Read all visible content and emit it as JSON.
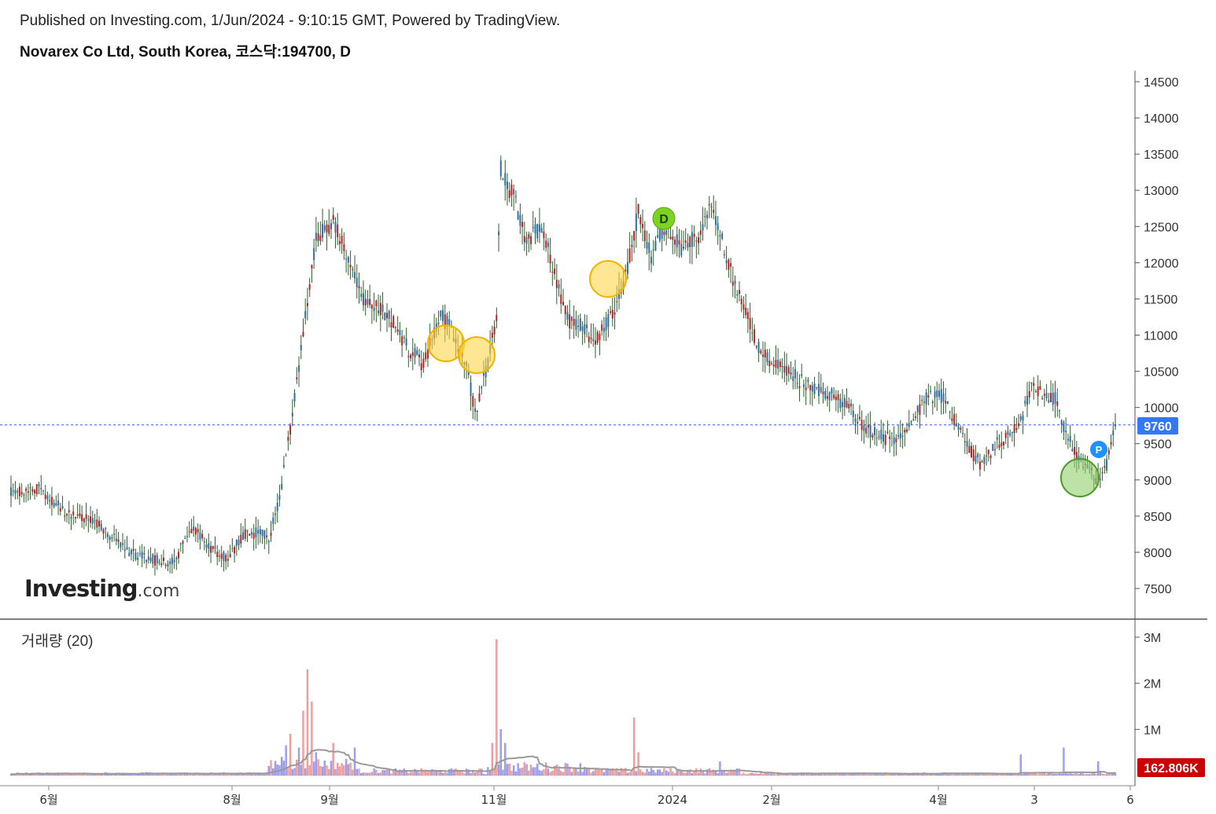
{
  "header": {
    "published": "Published on Investing.com, 1/Jun/2024 - 9:10:15 GMT, Powered by TradingView.",
    "symbol": "Novarex Co Ltd, South Korea, 코스닥:194700, D"
  },
  "logo": {
    "main": "Investing",
    "suffix": ".com"
  },
  "volume_panel": {
    "label": "거래량 (20)",
    "last_value_label": "162.806K"
  },
  "colors": {
    "up": "#b22222",
    "down": "#2e6da4",
    "wick": "#2e5e2e",
    "vol_up": "#f4a6a6",
    "vol_down": "#a8a8f0",
    "vol_ma": "#999999",
    "last_price_line": "#3355ff",
    "last_price_badge": "#3377ff",
    "vol_badge": "#cc0000"
  },
  "chart_data": [
    {
      "type": "candlestick",
      "title": "Novarex Co Ltd, South Korea, 코스닥:194700, D",
      "ylim": [
        7000,
        14800
      ],
      "y_ticks": [
        7500,
        8000,
        8500,
        9000,
        9500,
        10000,
        10500,
        11000,
        11500,
        12000,
        12500,
        13000,
        13500,
        14000,
        14500
      ],
      "x_ticks": [
        "6월",
        "8월",
        "9월",
        "11월",
        "2024",
        "2월",
        "4월",
        "3",
        "6"
      ],
      "last_price": 9760,
      "last_price_label": "9760",
      "markers": [
        {
          "label": "D",
          "type": "dividend"
        },
        {
          "label": "P",
          "type": "event"
        }
      ],
      "keyframes": [
        [
          0,
          8800
        ],
        [
          12,
          8900
        ],
        [
          25,
          8550
        ],
        [
          40,
          8400
        ],
        [
          55,
          8000
        ],
        [
          65,
          7900
        ],
        [
          75,
          7850
        ],
        [
          85,
          8350
        ],
        [
          92,
          8100
        ],
        [
          100,
          7900
        ],
        [
          110,
          8300
        ],
        [
          120,
          8200
        ],
        [
          125,
          8750
        ],
        [
          130,
          9700
        ],
        [
          136,
          11000
        ],
        [
          142,
          12300
        ],
        [
          150,
          12600
        ],
        [
          156,
          12100
        ],
        [
          163,
          11500
        ],
        [
          170,
          11400
        ],
        [
          178,
          11200
        ],
        [
          185,
          10800
        ],
        [
          192,
          10600
        ],
        [
          200,
          11300
        ],
        [
          206,
          11000
        ],
        [
          212,
          10600
        ],
        [
          216,
          9900
        ],
        [
          222,
          10600
        ],
        [
          226,
          11300
        ],
        [
          228,
          13300
        ],
        [
          234,
          12900
        ],
        [
          240,
          12300
        ],
        [
          247,
          12500
        ],
        [
          254,
          11700
        ],
        [
          260,
          11200
        ],
        [
          266,
          11100
        ],
        [
          272,
          10900
        ],
        [
          280,
          11300
        ],
        [
          286,
          11800
        ],
        [
          292,
          12700
        ],
        [
          298,
          12100
        ],
        [
          304,
          12500
        ],
        [
          312,
          12200
        ],
        [
          320,
          12400
        ],
        [
          326,
          12800
        ],
        [
          332,
          12200
        ],
        [
          338,
          11600
        ],
        [
          342,
          11400
        ],
        [
          348,
          10800
        ],
        [
          355,
          10600
        ],
        [
          362,
          10500
        ],
        [
          370,
          10300
        ],
        [
          380,
          10200
        ],
        [
          390,
          10000
        ],
        [
          398,
          9700
        ],
        [
          405,
          9600
        ],
        [
          412,
          9550
        ],
        [
          418,
          9700
        ],
        [
          425,
          10100
        ],
        [
          432,
          10200
        ],
        [
          440,
          9800
        ],
        [
          447,
          9400
        ],
        [
          452,
          9200
        ],
        [
          458,
          9500
        ],
        [
          464,
          9600
        ],
        [
          470,
          9800
        ],
        [
          475,
          10300
        ],
        [
          480,
          10200
        ],
        [
          486,
          10100
        ],
        [
          490,
          9700
        ],
        [
          494,
          9450
        ],
        [
          500,
          9200
        ],
        [
          506,
          9000
        ],
        [
          510,
          9200
        ],
        [
          514,
          9750
        ]
      ]
    },
    {
      "type": "bar",
      "title": "거래량 (20)",
      "ylim": [
        0,
        3400000
      ],
      "y_ticks": [
        1000000,
        2000000,
        3000000
      ],
      "y_tick_labels": [
        "1M",
        "2M",
        "3M"
      ],
      "last_value": 162806,
      "spikes": [
        [
          122,
          150000
        ],
        [
          126,
          400000
        ],
        [
          128,
          650000
        ],
        [
          130,
          900000
        ],
        [
          134,
          600000
        ],
        [
          136,
          1400000
        ],
        [
          138,
          2300000
        ],
        [
          140,
          1600000
        ],
        [
          142,
          500000
        ],
        [
          150,
          700000
        ],
        [
          160,
          600000
        ],
        [
          224,
          700000
        ],
        [
          226,
          2950000
        ],
        [
          228,
          1000000
        ],
        [
          230,
          700000
        ],
        [
          290,
          1250000
        ],
        [
          292,
          500000
        ],
        [
          330,
          300000
        ],
        [
          470,
          450000
        ],
        [
          490,
          600000
        ],
        [
          506,
          300000
        ]
      ]
    }
  ]
}
